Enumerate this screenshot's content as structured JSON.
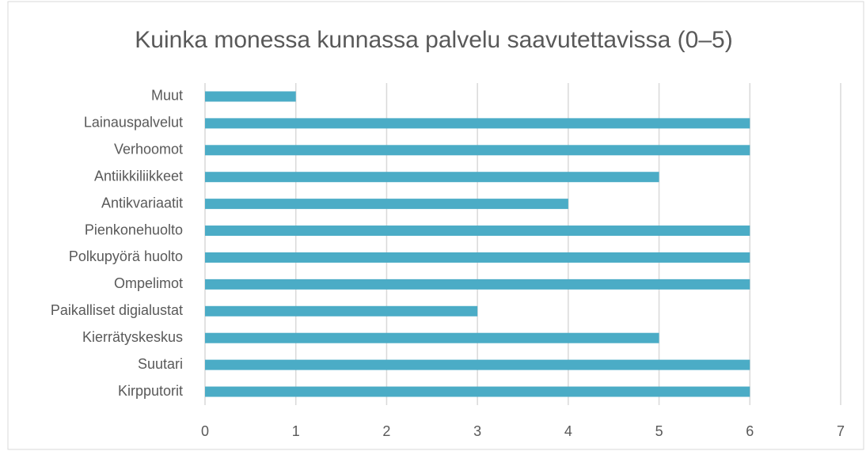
{
  "chart_data": {
    "type": "bar",
    "orientation": "horizontal",
    "title": "Kuinka monessa kunnassa palvelu saavutettavissa (0–5)",
    "categories": [
      "Muut",
      "Lainauspalvelut",
      "Verhoomot",
      "Antiikkiliikkeet",
      "Antikvariaatit",
      "Pienkonehuolto",
      "Polkupyörä huolto",
      "Ompelimot",
      "Paikalliset digialustat",
      "Kierrätyskeskus",
      "Suutari",
      "Kirpputorit"
    ],
    "values": [
      1,
      6,
      6,
      5,
      4,
      6,
      6,
      6,
      3,
      5,
      6,
      6
    ],
    "color": "#4bacc6",
    "xlim": [
      0,
      7
    ],
    "xticks": [
      0,
      1,
      2,
      3,
      4,
      5,
      6,
      7
    ],
    "grid": true
  }
}
